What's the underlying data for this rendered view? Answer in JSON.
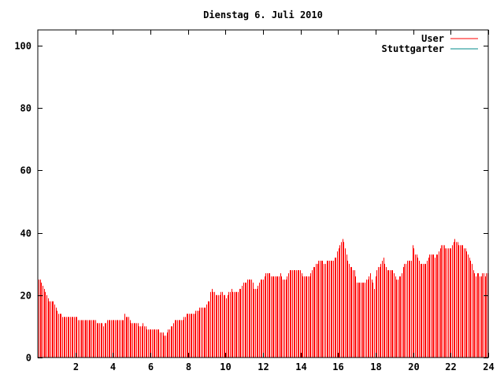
{
  "chart_data": {
    "type": "bar",
    "title": "Dienstag 6. Juli 2010",
    "xlabel": "",
    "ylabel": "",
    "xlim": [
      0,
      24
    ],
    "ylim": [
      0,
      105
    ],
    "x_ticks": [
      2,
      4,
      6,
      8,
      10,
      12,
      14,
      16,
      18,
      20,
      22,
      24
    ],
    "x_tick_labels": [
      "2",
      "4",
      "6",
      "8",
      "10",
      "12",
      "14",
      "16",
      "18",
      "20",
      "22",
      "24"
    ],
    "y_ticks": [
      0,
      20,
      40,
      60,
      80,
      100
    ],
    "y_tick_labels": [
      "0",
      "20",
      "40",
      "60",
      "80",
      "100"
    ],
    "legend_position": "top-right",
    "grid": false,
    "series": [
      {
        "name": "User",
        "color": "#ff0000",
        "values": [
          25,
          25,
          24,
          23,
          22,
          21,
          20,
          19,
          18,
          18,
          18,
          18,
          17,
          16,
          15,
          14,
          14,
          14,
          13,
          13,
          13,
          13,
          13,
          13,
          13,
          13,
          13,
          13,
          13,
          13,
          12,
          12,
          12,
          12,
          12,
          12,
          12,
          12,
          12,
          12,
          12,
          12,
          12,
          12,
          11,
          11,
          11,
          11,
          11,
          10,
          11,
          11,
          12,
          12,
          12,
          12,
          12,
          12,
          12,
          12,
          12,
          12,
          12,
          12,
          12,
          14,
          13,
          13,
          13,
          12,
          11,
          11,
          11,
          11,
          11,
          11,
          10,
          10,
          10,
          11,
          10,
          10,
          9,
          9,
          9,
          9,
          9,
          9,
          9,
          9,
          9,
          9,
          8,
          8,
          8,
          7,
          7,
          8,
          9,
          9,
          10,
          10,
          11,
          12,
          12,
          12,
          12,
          12,
          12,
          12,
          13,
          13,
          14,
          14,
          14,
          14,
          14,
          14,
          14,
          15,
          15,
          15,
          16,
          16,
          16,
          16,
          16,
          17,
          18,
          18,
          21,
          22,
          21,
          21,
          20,
          20,
          20,
          20,
          21,
          21,
          20,
          20,
          19,
          20,
          21,
          21,
          22,
          21,
          21,
          21,
          21,
          21,
          22,
          22,
          23,
          24,
          24,
          24,
          25,
          25,
          25,
          25,
          24,
          22,
          22,
          22,
          23,
          24,
          25,
          25,
          25,
          26,
          27,
          27,
          27,
          27,
          26,
          26,
          26,
          26,
          26,
          26,
          26,
          27,
          26,
          25,
          25,
          25,
          26,
          27,
          28,
          28,
          28,
          28,
          28,
          28,
          28,
          28,
          28,
          27,
          26,
          26,
          26,
          26,
          26,
          26,
          27,
          28,
          29,
          29,
          30,
          30,
          31,
          31,
          31,
          31,
          30,
          30,
          31,
          31,
          31,
          31,
          31,
          31,
          32,
          32,
          34,
          35,
          36,
          37,
          38,
          37,
          35,
          33,
          31,
          30,
          29,
          29,
          28,
          28,
          26,
          24,
          24,
          24,
          24,
          24,
          24,
          24,
          25,
          25,
          26,
          27,
          25,
          24,
          22,
          26,
          28,
          29,
          29,
          30,
          31,
          32,
          30,
          29,
          28,
          28,
          28,
          28,
          28,
          27,
          26,
          25,
          25,
          26,
          26,
          27,
          29,
          30,
          30,
          31,
          31,
          31,
          31,
          36,
          35,
          33,
          33,
          32,
          31,
          30,
          30,
          30,
          30,
          30,
          31,
          32,
          33,
          33,
          33,
          33,
          32,
          33,
          33,
          34,
          35,
          36,
          36,
          36,
          35,
          35,
          35,
          35,
          35,
          36,
          37,
          38,
          37,
          37,
          36,
          36,
          36,
          36,
          35,
          35,
          34,
          33,
          32,
          31,
          30,
          28,
          27,
          26,
          27,
          27,
          26,
          26,
          27,
          27,
          26,
          27,
          27
        ]
      },
      {
        "name": "Stuttgarter",
        "color": "#008b8b",
        "values": []
      }
    ]
  }
}
